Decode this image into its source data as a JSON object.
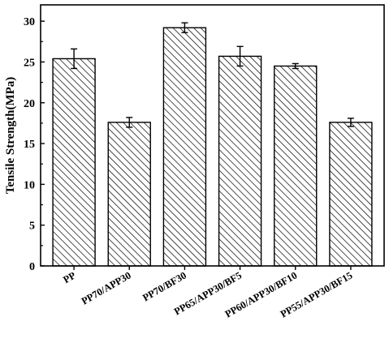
{
  "chart_data": {
    "type": "bar",
    "title": "",
    "xlabel": "",
    "ylabel": "Tensile Strength(MPa)",
    "ylim": [
      0,
      32
    ],
    "yticks": [
      0,
      5,
      10,
      15,
      20,
      25,
      30
    ],
    "grid": false,
    "legend": "none",
    "bar_fill": "diagonal-hatch",
    "colors": {
      "bar_stroke": "#000000",
      "hatch": "#000000",
      "background": "#ffffff"
    },
    "categories": [
      "PP",
      "PP70/APP30",
      "PP70/BF30",
      "PP65/APP30/BF5",
      "PP60/APP30/BF10",
      "PP55/APP30/BF15"
    ],
    "series": [
      {
        "values": [
          25.4,
          17.6,
          29.2,
          25.7,
          24.5,
          17.6
        ],
        "errors": [
          1.2,
          0.6,
          0.6,
          1.2,
          0.3,
          0.5
        ]
      }
    ]
  }
}
